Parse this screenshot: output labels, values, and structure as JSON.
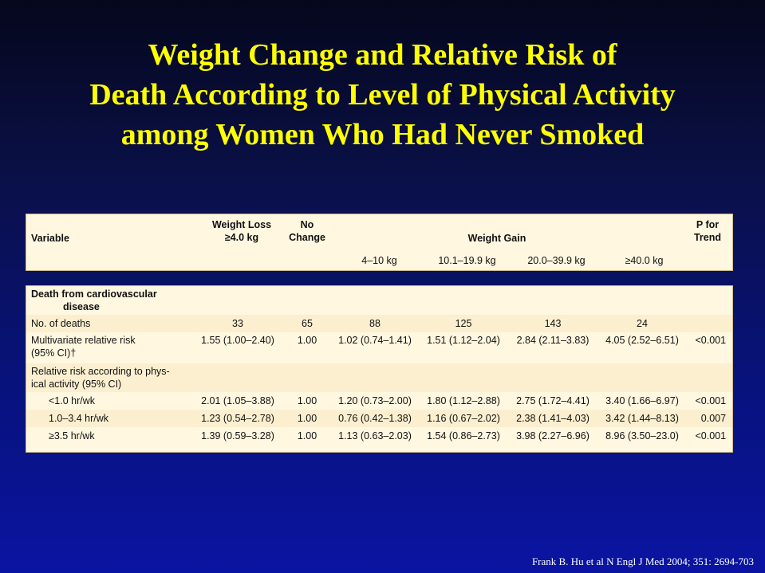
{
  "title_lines": [
    "Weight Change and Relative Risk of",
    "Death According to Level of Physical Activity",
    "among Women Who Had Never Smoked"
  ],
  "header": {
    "variable": "Variable",
    "weight_loss_line1": "Weight Loss",
    "weight_loss_line2": "≥4.0 kg",
    "no_change_line1": "No",
    "no_change_line2": "Change",
    "weight_gain": "Weight Gain",
    "p_trend_line1": "P for",
    "p_trend_line2": "Trend",
    "gain_ranges": [
      "4–10 kg",
      "10.1–19.9 kg",
      "20.0–39.9 kg",
      "≥40.0 kg"
    ]
  },
  "section_title_line1": "Death from cardiovascular",
  "section_title_line2": "disease",
  "rows": [
    {
      "label": "No. of deaths",
      "loss": "33",
      "nochange": "65",
      "g1": "88",
      "g2": "125",
      "g3": "143",
      "g4": "24",
      "p": ""
    },
    {
      "label": "Multivariate relative risk",
      "label2": "(95% CI)†",
      "loss": "1.55 (1.00–2.40)",
      "nochange": "1.00",
      "g1": "1.02 (0.74–1.41)",
      "g2": "1.51 (1.12–2.04)",
      "g3": "2.84 (2.11–3.83)",
      "g4": "4.05 (2.52–6.51)",
      "p": "<0.001"
    },
    {
      "label": "Relative risk according to phys-",
      "label2": "ical activity (95% CI)"
    },
    {
      "label": "<1.0 hr/wk",
      "loss": "2.01 (1.05–3.88)",
      "nochange": "1.00",
      "g1": "1.20 (0.73–2.00)",
      "g2": "1.80 (1.12–2.88)",
      "g3": "2.75 (1.72–4.41)",
      "g4": "3.40 (1.66–6.97)",
      "p": "<0.001"
    },
    {
      "label": "1.0–3.4 hr/wk",
      "loss": "1.23 (0.54–2.78)",
      "nochange": "1.00",
      "g1": "0.76 (0.42–1.38)",
      "g2": "1.16 (0.67–2.02)",
      "g3": "2.38 (1.41–4.03)",
      "g4": "3.42 (1.44–8.13)",
      "p": "0.007"
    },
    {
      "label": "≥3.5 hr/wk",
      "loss": "1.39 (0.59–3.28)",
      "nochange": "1.00",
      "g1": "1.13 (0.63–2.03)",
      "g2": "1.54 (0.86–2.73)",
      "g3": "3.98 (2.27–6.96)",
      "g4": "8.96 (3.50–23.0)",
      "p": "<0.001"
    }
  ],
  "citation": "Frank B. Hu et al N Engl J Med 2004; 351: 2694-703"
}
